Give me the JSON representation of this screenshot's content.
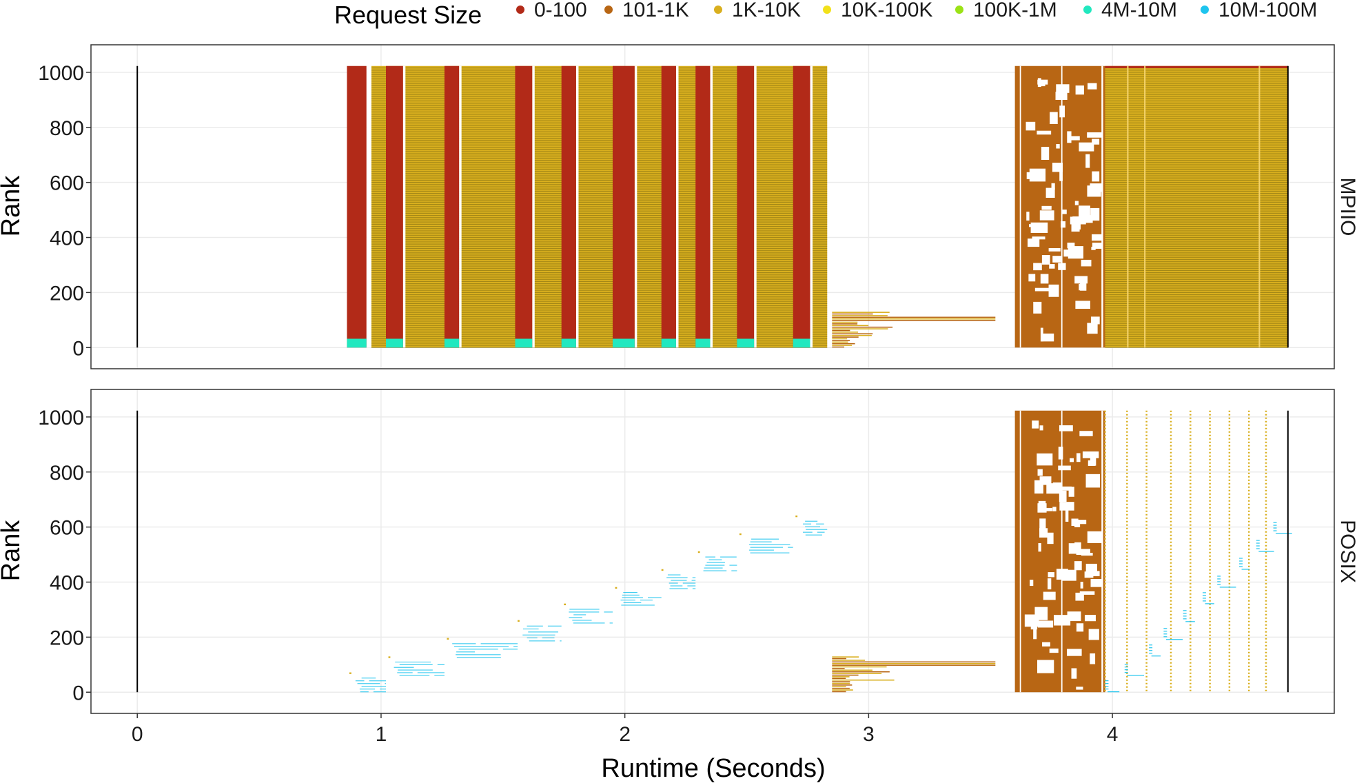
{
  "chart_data": {
    "type": "scatter",
    "xlabel": "Runtime (Seconds)",
    "ylabel": "Rank",
    "xlim": [
      -0.19,
      4.91
    ],
    "ylim": [
      -77,
      1100
    ],
    "x_ticks": [
      0,
      1,
      2,
      3,
      4
    ],
    "y_ticks": [
      0,
      200,
      400,
      600,
      800,
      1000
    ],
    "grid": true,
    "legend": {
      "title": "Request Size",
      "position": "top",
      "entries": [
        {
          "label": "0-100",
          "color": "#B22A18"
        },
        {
          "label": "101-1K",
          "color": "#B86614"
        },
        {
          "label": "1K-10K",
          "color": "#D9AF1E"
        },
        {
          "label": "10K-100K",
          "color": "#F2E11A"
        },
        {
          "label": "100K-1M",
          "color": "#9BE216"
        },
        {
          "label": "4M-10M",
          "color": "#21E8BF"
        },
        {
          "label": "10M-100M",
          "color": "#1EC4EE"
        }
      ]
    },
    "panels": [
      {
        "name": "MPIIO",
        "start_line_x": 0,
        "end_line_x": 4.72,
        "red_bars": [
          [
            0.86,
            0.94
          ],
          [
            1.02,
            1.09
          ],
          [
            1.26,
            1.32
          ],
          [
            1.55,
            1.62
          ],
          [
            1.74,
            1.8
          ],
          [
            1.95,
            2.04
          ],
          [
            2.15,
            2.21
          ],
          [
            2.29,
            2.35
          ],
          [
            2.46,
            2.53
          ],
          [
            2.69,
            2.76
          ]
        ],
        "gold_blocks": [
          [
            0.96,
            2.83
          ],
          [
            3.97,
            4.72
          ]
        ],
        "white_gaps": [
          [
            1.09,
            1.1
          ],
          [
            1.32,
            1.33
          ],
          [
            1.62,
            1.63
          ],
          [
            1.8,
            1.81
          ],
          [
            2.04,
            2.05
          ],
          [
            2.21,
            2.22
          ],
          [
            2.35,
            2.36
          ],
          [
            2.53,
            2.54
          ],
          [
            2.76,
            2.77
          ]
        ],
        "rank_top": 1023,
        "teal_rank_max": 32,
        "tail_ranks_max": 128,
        "tail_x": [
          2.85,
          3.52
        ],
        "brown_block_x": [
          3.6,
          3.97
        ],
        "vertical_streaks_x": [
          4.06,
          4.13,
          4.6
        ]
      },
      {
        "name": "POSIX",
        "start_line_x": 0,
        "end_line_x": 4.72,
        "staircase": [
          {
            "x": [
              0.89,
              1.02
            ],
            "rank": [
              0,
              60
            ]
          },
          {
            "x": [
              1.05,
              1.26
            ],
            "rank": [
              60,
              118
            ]
          },
          {
            "x": [
              1.29,
              1.56
            ],
            "rank": [
              125,
              185
            ]
          },
          {
            "x": [
              1.58,
              1.74
            ],
            "rank": [
              185,
              250
            ]
          },
          {
            "x": [
              1.77,
              1.95
            ],
            "rank": [
              250,
              310
            ]
          },
          {
            "x": [
              1.98,
              2.15
            ],
            "rank": [
              315,
              370
            ]
          },
          {
            "x": [
              2.17,
              2.29
            ],
            "rank": [
              375,
              435
            ]
          },
          {
            "x": [
              2.32,
              2.46
            ],
            "rank": [
              440,
              500
            ]
          },
          {
            "x": [
              2.49,
              2.69
            ],
            "rank": [
              505,
              565
            ]
          },
          {
            "x": [
              2.72,
              2.83
            ],
            "rank": [
              570,
              630
            ]
          }
        ],
        "tail_x": [
          2.85,
          3.52
        ],
        "tail_ranks_max": 128,
        "brown_block_x": [
          3.6,
          3.97
        ],
        "gold_dotted_lines_x": [
          3.97,
          4.06,
          4.14,
          4.24,
          4.32,
          4.4,
          4.48,
          4.56,
          4.63
        ],
        "cyan_late_ranks": [
          0,
          60,
          130,
          190,
          255,
          320,
          380,
          445,
          510,
          575
        ]
      }
    ]
  }
}
